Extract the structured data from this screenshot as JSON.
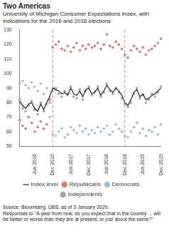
{
  "chart_data": {
    "type": "line",
    "title": "Two Americas",
    "subtitle": "University of Michigan Consumer Expectations Index, with indications for the 2016 and 2018 elections",
    "notes": [
      "Source: Bloomberg, UBS, as of 3 January 2020.",
      "Responses to \"A year from now, do you expect that in the country ... will be better or worse than they are at present, or just about the same?\""
    ],
    "categories": [
      null,
      null,
      null,
      null,
      null,
      "Jun 2016",
      null,
      null,
      null,
      null,
      null,
      "Dec 2016",
      null,
      null,
      null,
      null,
      null,
      "Jun 2017",
      null,
      null,
      null,
      null,
      null,
      "Dec 2017",
      null,
      null,
      null,
      null,
      null,
      "Jun 2018",
      null,
      null,
      null,
      null,
      null,
      "Dec 2018",
      null,
      null,
      null,
      null,
      null,
      "Jun 2019",
      null,
      null,
      null,
      null,
      null,
      "Dec 2019"
    ],
    "series": [
      {
        "name": "Index level",
        "type": "line",
        "color": "#222222",
        "line_style": "solid",
        "values": [
          81,
          78,
          76,
          79,
          80,
          76,
          74,
          79,
          75,
          80,
          84,
          90,
          89,
          88,
          86,
          87,
          85,
          90,
          86,
          85,
          88,
          84,
          89,
          90,
          86,
          87,
          90,
          85,
          88,
          92,
          89,
          87,
          90,
          88,
          85,
          80,
          78,
          82,
          87,
          89,
          84,
          86,
          82,
          83,
          85,
          86,
          88,
          90
        ]
      },
      {
        "name": "Republicans",
        "type": "scatter",
        "color": "#e8756e",
        "marker": "circle",
        "values": [
          68,
          64,
          62,
          70,
          66,
          60,
          63,
          67,
          62,
          65,
          82,
          118,
          120,
          122,
          117,
          116,
          119,
          115,
          118,
          121,
          116,
          119,
          117,
          120,
          118,
          119,
          121,
          117,
          120,
          127,
          119,
          118,
          122,
          120,
          117,
          113,
          111,
          116,
          119,
          117,
          115,
          118,
          113,
          116,
          117,
          119,
          121,
          124
        ]
      },
      {
        "name": "Democrats",
        "type": "scatter",
        "color": "#9dbcdf",
        "marker": "circle",
        "values": [
          93,
          95,
          92,
          90,
          94,
          91,
          88,
          93,
          86,
          90,
          70,
          58,
          57,
          60,
          62,
          56,
          58,
          63,
          61,
          59,
          64,
          60,
          62,
          58,
          61,
          59,
          63,
          60,
          62,
          64,
          58,
          60,
          65,
          62,
          60,
          57,
          56,
          60,
          63,
          66,
          59,
          62,
          57,
          61,
          60,
          63,
          58,
          65
        ]
      },
      {
        "name": "Independents",
        "type": "scatter",
        "color": "#a6a6a6",
        "marker": "circle",
        "values": [
          82,
          76,
          74,
          78,
          81,
          75,
          72,
          80,
          74,
          79,
          80,
          88,
          90,
          86,
          84,
          88,
          86,
          91,
          84,
          83,
          89,
          82,
          88,
          91,
          85,
          88,
          91,
          84,
          87,
          93,
          88,
          86,
          90,
          87,
          83,
          79,
          77,
          80,
          86,
          90,
          83,
          85,
          80,
          82,
          86,
          84,
          87,
          91
        ]
      }
    ],
    "vlines": [
      {
        "x": "Dec 2016",
        "color": "#e8756e",
        "line_style": "dashed"
      },
      {
        "x": "Dec 2018",
        "color": "#e8756e",
        "line_style": "dashed"
      }
    ],
    "ylim": [
      50,
      130
    ],
    "yticks": [
      50,
      60,
      70,
      80,
      90,
      100,
      110,
      120,
      130
    ],
    "grid": false,
    "legend": "bottom"
  }
}
